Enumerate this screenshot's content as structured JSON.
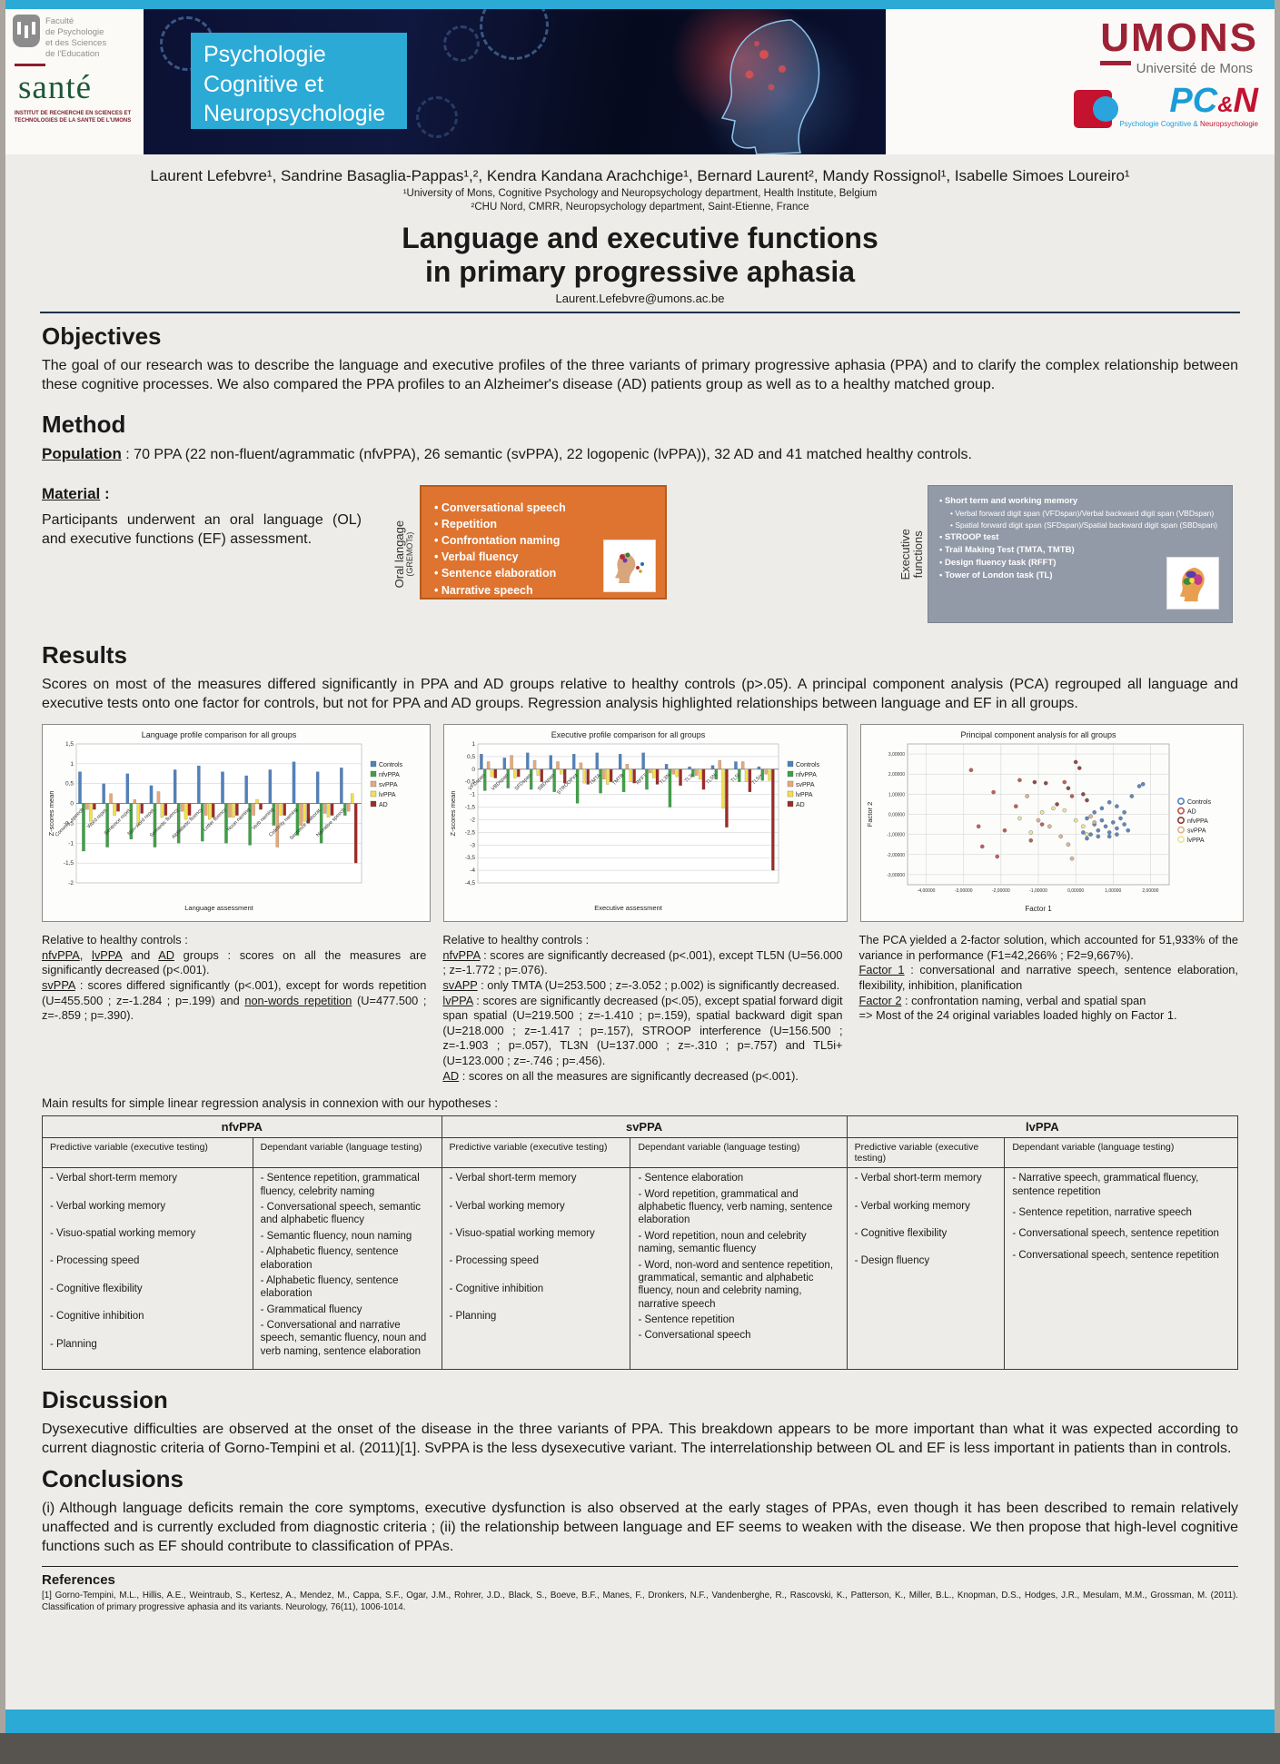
{
  "colors": {
    "accent_cyan": "#2baad6",
    "orange_box": "#de7430",
    "gray_box": "#939aa7",
    "umons_red": "#9d2235",
    "pcn_blue": "#1b9cd8",
    "pcn_red": "#c4122f"
  },
  "header": {
    "faculty": {
      "l1": "Faculté",
      "l2": "de Psychologie",
      "l3": "et des Sciences",
      "l4": "de l'Education",
      "sante": "santé",
      "institute": "INSTITUT DE RECHERCHE EN SCIENCES ET TECHNOLOGIES DE LA SANTE DE L'UMONS"
    },
    "dept": {
      "l1": "Psychologie",
      "l2": "Cognitive et",
      "l3": "Neuropsychologie"
    },
    "umons": {
      "u": "U",
      "rest": "MONS",
      "subtitle": "Université de Mons"
    },
    "pcn": {
      "pc": "PC",
      "amp": "&",
      "n": "N",
      "tag1": "Psychologie Cognitive &",
      "tag2": " Neuropsychologie"
    }
  },
  "byline": {
    "authors": "Laurent Lefebvre¹, Sandrine Basaglia-Pappas¹,², Kendra Kandana Arachchige¹, Bernard Laurent², Mandy Rossignol¹, Isabelle Simoes Loureiro¹",
    "affil1": "¹University of Mons, Cognitive Psychology and Neuropsychology department, Health Institute, Belgium",
    "affil2": "²CHU Nord, CMRR, Neuropsychology department, Saint-Etienne, France"
  },
  "title": {
    "line1": "Language and executive functions",
    "line2": "in primary progressive aphasia",
    "email": "Laurent.Lefebvre@umons.ac.be"
  },
  "objectives": {
    "heading": "Objectives",
    "text": "The goal of our research was to describe the language and executive profiles of the three variants of primary progressive aphasia (PPA) and to clarify the complex relationship between these cognitive processes. We also compared the PPA profiles to an Alzheimer's disease (AD) patients group as well as to a healthy matched group."
  },
  "method": {
    "heading": "Method",
    "population_label": "Population",
    "population_text": " : 70 PPA (22 non-fluent/agrammatic (nfvPPA), 26 semantic (svPPA), 22 logopenic (lvPPA)), 32 AD and 41 matched healthy controls.",
    "material_label": "Material",
    "material_colon": " :",
    "material_text": "Participants underwent an oral language (OL) and executive functions (EF) assessment."
  },
  "oral_box": {
    "side_label": "Oral langage",
    "side_sub": "(GREMOTs)",
    "items": [
      "Conversational speech",
      "Repetition",
      "Confrontation naming",
      "Verbal fluency",
      "Sentence elaboration",
      "Narrative speech"
    ]
  },
  "exec_box": {
    "side_label_1": "Executive",
    "side_label_2": "functions",
    "items": [
      {
        "t": "Short term and working memory",
        "c": "l1"
      },
      {
        "t": "Verbal forward digit span (VFDspan)/Verbal backward digit span (VBDspan)",
        "c": "l2"
      },
      {
        "t": "Spatial forward digit span (SFDspan)/Spatial backward digit span (SBDspan)",
        "c": "l2"
      },
      {
        "t": "STROOP test",
        "c": "l1"
      },
      {
        "t": "Trail Making Test (TMTA, TMTB)",
        "c": "l1"
      },
      {
        "t": "Design fluency task  (RFFT)",
        "c": "l1"
      },
      {
        "t": "Tower of London task (TL)",
        "c": "l1"
      }
    ]
  },
  "results": {
    "heading": "Results",
    "text": "Scores on most of the measures differed significantly in PPA and AD groups relative to healthy controls (p>.05). A principal component analysis (PCA) regrouped all language and executive tests onto one factor for controls, but not for PPA and AD groups. Regression analysis highlighted relationships between language and EF in all groups."
  },
  "notes": {
    "left": [
      {
        "t": "Relative to healthy controls :\n"
      },
      {
        "t": "nfvPPA",
        "u": 1
      },
      {
        "t": ", "
      },
      {
        "t": "lvPPA",
        "u": 1
      },
      {
        "t": " and "
      },
      {
        "t": "AD",
        "u": 1
      },
      {
        "t": " groups : scores on all the measures are significantly decreased (p<.001).\n"
      },
      {
        "t": "svPPA",
        "u": 1
      },
      {
        "t": " : scores differed significantly (p<.001), except for words repetition (U=455.500 ; z=-1.284 ; p=.199) and "
      },
      {
        "t": "non-words repetition",
        "u": 1
      },
      {
        "t": " (U=477.500 ; z=-.859 ; p=.390)."
      }
    ],
    "middle": [
      {
        "t": "Relative to healthy controls :\n"
      },
      {
        "t": "nfvPPA",
        "u": 1
      },
      {
        "t": " : scores are significantly decreased (p<.001), except TL5N (U=56.000 ; z=-1.772 ; p=.076).\n"
      },
      {
        "t": "svAPP",
        "u": 1
      },
      {
        "t": " : only TMTA (U=253.500 ; z=-3.052 ; p.002) is significantly decreased.\n"
      },
      {
        "t": "lvPPA",
        "u": 1
      },
      {
        "t": " : scores are significantly decreased (p<.05), except spatial forward digit span spatial (U=219.500 ; z=-1.410 ; p=.159), spatial backward digit span (U=218.000 ; z=-1.417 ; p=.157), STROOP interference (U=156.500 ; z=-1.903 ; p=.057), TL3N (U=137.000 ; z=-.310 ; p=.757) and TL5i+ (U=123.000 ; z=-.746 ; p=.456).\n"
      },
      {
        "t": "AD",
        "u": 1
      },
      {
        "t": " : scores on all the measures are significantly decreased (p<.001)."
      }
    ],
    "right": [
      {
        "t": "The PCA yielded a 2-factor solution, which accounted for 51,933% of the variance in performance (F1=42,266% ; F2=9,667%).\n"
      },
      {
        "t": "Factor 1",
        "u": 1
      },
      {
        "t": " : conversational and narrative speech, sentence elaboration, flexibility, inhibition, planification\n"
      },
      {
        "t": "Factor 2",
        "u": 1
      },
      {
        "t": " : confrontation naming, verbal and spatial span\n=> Most of the 24 original variables loaded highly on Factor 1."
      }
    ]
  },
  "regression_intro": "Main results for simple linear regression analysis in connexion with our hypotheses :",
  "table": {
    "sub_pred": "Predictive variable (executive testing)",
    "sub_dep": "Dependant variable (language testing)",
    "groups": [
      {
        "name": "nfvPPA",
        "predictive": [
          "- Verbal short-term memory",
          "- Verbal working memory",
          "- Visuo-spatial working memory",
          "- Processing speed",
          "- Cognitive flexibility",
          "- Cognitive inhibition",
          "- Planning"
        ],
        "dependant": [
          "- Sentence repetition,  grammatical fluency, celebrity naming",
          "- Conversational speech, semantic and alphabetic fluency",
          "- Semantic fluency, noun naming",
          "- Alphabetic fluency, sentence elaboration",
          "- Alphabetic fluency, sentence elaboration",
          "- Grammatical fluency",
          "- Conversational and narrative speech, semantic fluency, noun and verb naming, sentence elaboration"
        ]
      },
      {
        "name": "svPPA",
        "predictive": [
          "- Verbal short-term memory",
          "- Verbal working memory",
          "- Visuo-spatial working memory",
          "- Processing speed",
          "- Cognitive inhibition",
          "- Planning"
        ],
        "dependant": [
          "- Sentence elaboration",
          "- Word repetition, grammatical and alphabetic fluency, verb naming, sentence elaboration",
          "- Word repetition, noun and celebrity naming, semantic fluency",
          "- Word, non-word and sentence repetition, grammatical, semantic and alphabetic fluency, noun and celebrity naming, narrative speech",
          "- Sentence repetition",
          "- Conversational speech"
        ]
      },
      {
        "name": "lvPPA",
        "predictive": [
          "- Verbal short-term memory",
          "- Verbal working memory",
          "- Cognitive flexibility",
          "- Design fluency"
        ],
        "dependant": [
          "- Narrative speech, grammatical fluency, sentence repetition",
          "- Sentence repetition, narrative speech",
          "- Conversational speech, sentence repetition",
          "- Conversational speech, sentence repetition"
        ]
      }
    ]
  },
  "discussion": {
    "heading": "Discussion",
    "text": "Dysexecutive difficulties are observed at the onset of the disease in the three variants of PPA. This breakdown appears to be more important than what it was expected according to current diagnostic criteria of Gorno-Tempini et al. (2011)[1]. SvPPA is the less dysexecutive variant. The interrelationship between OL and EF is less important in patients than in controls."
  },
  "conclusions": {
    "heading": "Conclusions",
    "text": "(i) Although language deficits remain the core symptoms, executive dysfunction is also observed at the early stages of PPAs, even though it has been described to remain relatively unaffected and is currently excluded from diagnostic criteria ; (ii) the relationship between language and EF seems to weaken with the disease. We then propose that high-level cognitive functions such as EF should contribute to classification of PPAs."
  },
  "references": {
    "heading": "References",
    "text": "[1] Gorno-Tempini, M.L., Hillis, A.E., Weintraub, S., Kertesz, A., Mendez, M., Cappa, S.F., Ogar, J.M., Rohrer, J.D., Black, S., Boeve, B.F., Manes, F., Dronkers, N.F., Vandenberghe, R., Rascovski, K., Patterson, K., Miller, B.L., Knopman, D.S., Hodges, J.R., Mesulam, M.M., Grossman, M. (2011). Classification of primary progressive aphasia and its variants. Neurology, 76(11), 1006-1014."
  },
  "chart_data": [
    {
      "type": "bar",
      "title": "Language profile comparison for all groups",
      "xlabel": "Language assessment",
      "ylabel": "Z-scores mean",
      "ylim": [
        -2,
        1.5
      ],
      "ystep": 0.5,
      "categories": [
        "Convers. speech",
        "Word repet.",
        "Sentence repet.",
        "Non-word repet.",
        "Semantic fluency",
        "Alphabetic fluency",
        "Letter fluency",
        "Noun naming",
        "Verb naming",
        "Celebrity naming",
        "Sentence elaborat.",
        "Narrative speech"
      ],
      "legend_position": "right",
      "grid": true,
      "series": [
        {
          "name": "Controls",
          "color": "#4F81BD",
          "values": [
            0.8,
            0.5,
            0.75,
            0.45,
            0.85,
            0.95,
            0.8,
            0.7,
            0.85,
            1.05,
            0.8,
            0.9
          ]
        },
        {
          "name": "nfvPPA",
          "color": "#3FA046",
          "values": [
            -1.2,
            -1.1,
            -0.9,
            -1.1,
            -1.0,
            -0.95,
            -1.0,
            -1.05,
            -0.55,
            -0.8,
            -1.0,
            -0.3
          ]
        },
        {
          "name": "svPPA",
          "color": "#E8A878",
          "values": [
            -0.15,
            0.25,
            0.1,
            0.3,
            -0.2,
            -0.3,
            -0.35,
            -0.3,
            -1.1,
            -0.55,
            -0.25,
            -0.2
          ]
        },
        {
          "name": "lvPPA",
          "color": "#F2E14C",
          "values": [
            -0.45,
            -0.3,
            -0.55,
            -0.35,
            -0.4,
            -0.4,
            -0.35,
            0.1,
            -0.3,
            -0.45,
            -0.35,
            0.25
          ]
        },
        {
          "name": "AD",
          "color": "#9E2B25",
          "values": [
            -0.15,
            -0.2,
            -0.25,
            -0.3,
            -0.3,
            -0.35,
            -0.3,
            -0.15,
            -0.3,
            -0.5,
            -0.3,
            -1.5
          ]
        }
      ]
    },
    {
      "type": "bar",
      "title": "Executive profile comparison for all groups",
      "xlabel": "Executive assessment",
      "ylabel": "Z-scores mean",
      "ylim": [
        -4.5,
        1
      ],
      "ystep": 0.5,
      "categories": [
        "VFDspan",
        "VBDspan",
        "SFDspan",
        "SBDspan",
        "STROOPint",
        "TMTA",
        "TMTB",
        "RFFT",
        "TL3N",
        "TL3i",
        "TL5N",
        "TL5i",
        "TL5i+"
      ],
      "legend_position": "right",
      "grid": true,
      "series": [
        {
          "name": "Controls",
          "color": "#4F81BD",
          "values": [
            0.6,
            0.45,
            0.65,
            0.55,
            0.6,
            0.65,
            0.6,
            0.65,
            0.2,
            0.1,
            0.15,
            0.3,
            0.1
          ]
        },
        {
          "name": "nfvPPA",
          "color": "#3FA046",
          "values": [
            -0.85,
            -0.75,
            -0.8,
            -0.9,
            -1.35,
            -0.95,
            -0.9,
            -0.8,
            -1.5,
            -0.3,
            -0.4,
            -0.5,
            -0.45
          ]
        },
        {
          "name": "svPPA",
          "color": "#E8A878",
          "values": [
            0.3,
            0.55,
            0.35,
            0.3,
            0.25,
            -0.4,
            0.2,
            -0.15,
            -0.2,
            -0.25,
            0.35,
            0.3,
            -0.2
          ]
        },
        {
          "name": "lvPPA",
          "color": "#F2E14C",
          "values": [
            -0.3,
            -0.35,
            -0.25,
            -0.2,
            -0.55,
            -0.6,
            -0.5,
            -0.35,
            -0.3,
            -0.4,
            -1.55,
            -0.5,
            -0.45
          ]
        },
        {
          "name": "AD",
          "color": "#9E2B25",
          "values": [
            -0.35,
            -0.3,
            -0.5,
            -0.55,
            -0.6,
            -0.5,
            -0.55,
            -0.6,
            -0.65,
            -0.8,
            -2.3,
            -0.9,
            -4.0
          ]
        }
      ]
    },
    {
      "type": "scatter",
      "title": "Principal component analysis for all groups",
      "xlabel": "Factor 1",
      "ylabel": "Factor 2",
      "xlim": [
        -4.5,
        2.5
      ],
      "ylim": [
        -3.5,
        3.5
      ],
      "xstep": 1,
      "ystep": 1,
      "legend_position": "right",
      "grid": true,
      "series": [
        {
          "name": "Controls",
          "color": "#4F81BD",
          "points": [
            [
              0.3,
              -0.2
            ],
            [
              0.5,
              -0.5
            ],
            [
              0.6,
              -0.8
            ],
            [
              0.7,
              -0.3
            ],
            [
              0.8,
              -0.6
            ],
            [
              0.9,
              -0.9
            ],
            [
              1.0,
              -0.4
            ],
            [
              1.1,
              -0.7
            ],
            [
              1.2,
              -0.2
            ],
            [
              1.3,
              -0.5
            ],
            [
              0.4,
              -1.0
            ],
            [
              0.6,
              -1.1
            ],
            [
              0.9,
              -1.1
            ],
            [
              1.1,
              -1.0
            ],
            [
              1.4,
              -0.8
            ],
            [
              0.7,
              0.3
            ],
            [
              0.9,
              0.6
            ],
            [
              1.1,
              0.4
            ],
            [
              1.5,
              0.9
            ],
            [
              1.7,
              1.4
            ],
            [
              1.8,
              1.5
            ],
            [
              0.2,
              -0.9
            ],
            [
              0.5,
              0.1
            ],
            [
              1.3,
              0.1
            ],
            [
              0.3,
              -1.2
            ]
          ]
        },
        {
          "name": "AD",
          "color": "#C0504D",
          "points": [
            [
              -2.8,
              2.2
            ],
            [
              -1.5,
              1.7
            ],
            [
              -2.2,
              1.1
            ],
            [
              -2.6,
              -0.6
            ],
            [
              -1.9,
              -0.8
            ],
            [
              -2.5,
              -1.6
            ],
            [
              -2.1,
              -2.1
            ],
            [
              -1.2,
              -1.3
            ],
            [
              -0.9,
              -0.5
            ],
            [
              -1.6,
              0.4
            ],
            [
              -0.3,
              1.6
            ],
            [
              -0.1,
              0.9
            ]
          ]
        },
        {
          "name": "nfvPPA",
          "color": "#8C3A36",
          "points": [
            [
              -1.1,
              1.6
            ],
            [
              -0.8,
              1.55
            ],
            [
              -0.2,
              1.3
            ],
            [
              0.1,
              2.3
            ],
            [
              0.0,
              2.6
            ],
            [
              -0.5,
              0.5
            ],
            [
              0.2,
              1.0
            ],
            [
              0.3,
              0.7
            ]
          ]
        },
        {
          "name": "svPPA",
          "color": "#E0B089",
          "points": [
            [
              -1.3,
              0.9
            ],
            [
              -1.0,
              -0.3
            ],
            [
              -0.7,
              -0.6
            ],
            [
              -0.4,
              -1.1
            ],
            [
              -0.2,
              -1.5
            ],
            [
              -0.1,
              -2.2
            ],
            [
              0.4,
              -0.1
            ],
            [
              0.5,
              -0.4
            ]
          ]
        },
        {
          "name": "lvPPA",
          "color": "#EDE29B",
          "points": [
            [
              -1.5,
              -0.2
            ],
            [
              -1.2,
              -0.9
            ],
            [
              -0.6,
              0.3
            ],
            [
              -0.3,
              0.2
            ],
            [
              0.0,
              -0.3
            ],
            [
              0.2,
              -0.6
            ],
            [
              -0.9,
              0.1
            ],
            [
              0.3,
              -1.0
            ]
          ]
        }
      ]
    }
  ]
}
